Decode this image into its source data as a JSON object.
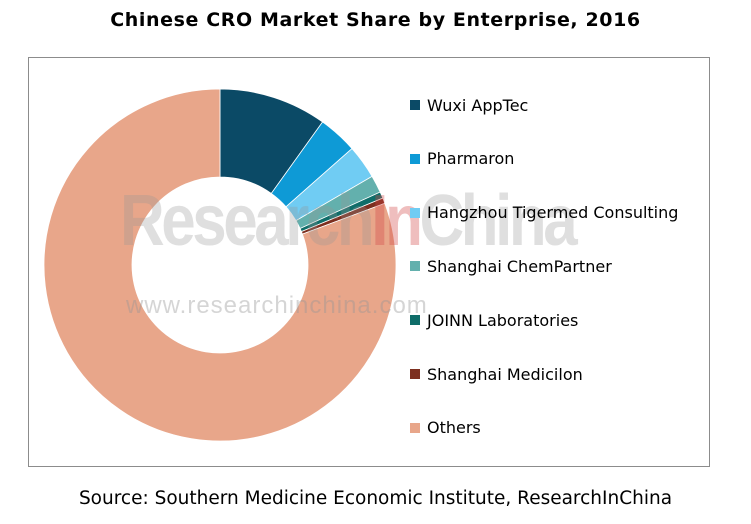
{
  "title": "Chinese CRO Market Share by Enterprise, 2016",
  "source": "Source: Southern Medicine Economic Institute, ResearchInChina",
  "watermark": {
    "brand_pre": "Research",
    "brand_accent": "In",
    "brand_post": "China",
    "url": "www.researchinchina.com"
  },
  "chart_data": {
    "type": "pie",
    "variant": "donut",
    "title": "Chinese CRO Market Share by Enterprise, 2016",
    "legend_position": "right",
    "series": [
      {
        "name": "Wuxi AppTec",
        "value": 9.9,
        "color": "#0b4a66"
      },
      {
        "name": "Pharmaron",
        "value": 3.6,
        "color": "#0e9ad6"
      },
      {
        "name": "Hangzhou Tigermed Consulting",
        "value": 3.1,
        "color": "#70ccf3"
      },
      {
        "name": "Shanghai ChemPartner",
        "value": 1.6,
        "color": "#63b0ad"
      },
      {
        "name": "JOINN Laboratories",
        "value": 0.6,
        "color": "#0f6d69"
      },
      {
        "name": "Shanghai Medicilon",
        "value": 0.5,
        "color": "#7d2f1f"
      },
      {
        "name": "Others",
        "value": 80.7,
        "color": "#e8a68a"
      }
    ]
  }
}
